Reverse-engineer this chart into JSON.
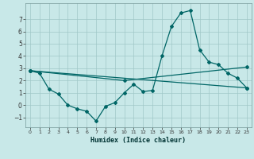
{
  "xlabel": "Humidex (Indice chaleur)",
  "xlim": [
    -0.5,
    23.5
  ],
  "ylim": [
    -1.8,
    8.3
  ],
  "yticks": [
    -1,
    0,
    1,
    2,
    3,
    4,
    5,
    6,
    7
  ],
  "xticks": [
    0,
    1,
    2,
    3,
    4,
    5,
    6,
    7,
    8,
    9,
    10,
    11,
    12,
    13,
    14,
    15,
    16,
    17,
    18,
    19,
    20,
    21,
    22,
    23
  ],
  "background_color": "#c8e8e8",
  "grid_color": "#a0c8c8",
  "line_color": "#006666",
  "lines": [
    {
      "x": [
        0,
        1,
        2,
        3,
        4,
        5,
        6,
        7,
        8,
        9,
        10,
        11,
        12,
        13,
        14,
        15,
        16,
        17,
        18,
        19,
        20,
        21,
        22,
        23
      ],
      "y": [
        2.8,
        2.6,
        1.3,
        0.9,
        0.0,
        -0.3,
        -0.5,
        -1.3,
        -0.1,
        0.2,
        1.0,
        1.7,
        1.1,
        1.2,
        4.0,
        6.4,
        7.5,
        7.7,
        4.5,
        3.5,
        3.3,
        2.6,
        2.2,
        1.4
      ]
    },
    {
      "x": [
        0,
        23
      ],
      "y": [
        2.8,
        1.4
      ]
    },
    {
      "x": [
        0,
        10,
        23
      ],
      "y": [
        2.8,
        2.0,
        3.1
      ]
    }
  ]
}
